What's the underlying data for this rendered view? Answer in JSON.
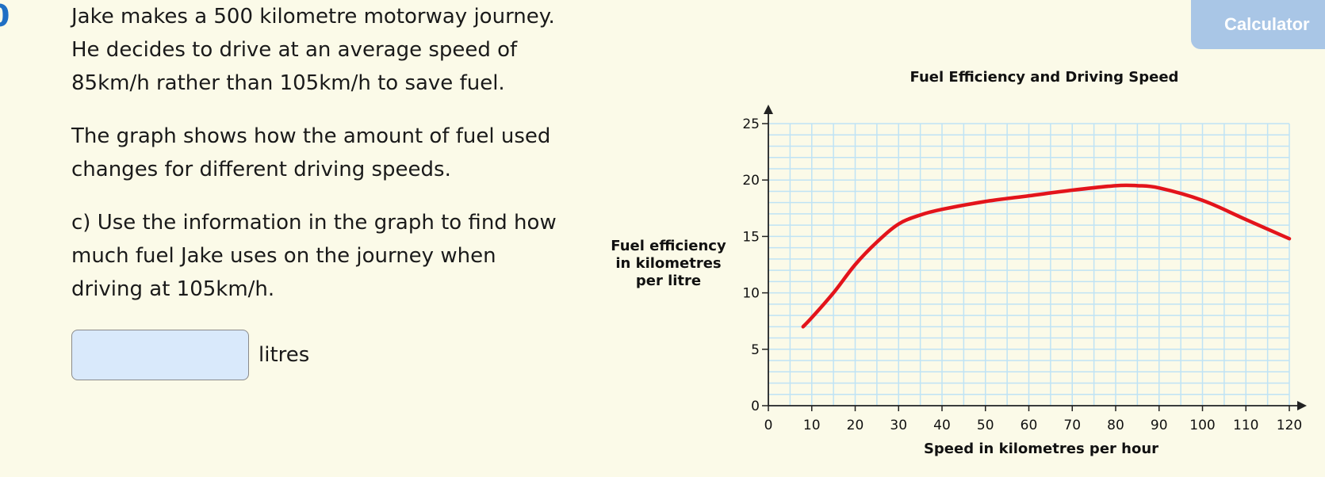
{
  "question": {
    "number": "0",
    "paragraphs": [
      [
        "Jake makes a 500 kilometre motorway journey.",
        "He decides to drive at an average speed of",
        "85km/h rather than 105km/h to save fuel."
      ],
      [
        "The graph shows how the amount of fuel used",
        "changes for different driving speeds."
      ],
      [
        "c) Use the information in the graph to find how",
        "much fuel Jake uses on the journey when",
        "driving at 105km/h."
      ]
    ]
  },
  "answer": {
    "value": "",
    "placeholder": "",
    "unit": "litres"
  },
  "toolbar": {
    "calculator_label": "Calculator"
  },
  "colors": {
    "background": "#fbfae8",
    "accent": "#1f6fc4",
    "curve": "#e3141b",
    "grid": "#bfe3f5",
    "input_bg": "#d9e9fb",
    "calculator_bg": "#a9c6e6"
  },
  "chart_data": {
    "type": "line",
    "title": "Fuel Efficiency and Driving Speed",
    "xlabel": "Speed in kilometres per hour",
    "ylabel": [
      "Fuel efficiency",
      "in kilometres",
      "per litre"
    ],
    "xlim": [
      0,
      120
    ],
    "ylim": [
      0,
      25
    ],
    "xticks": [
      0,
      10,
      20,
      30,
      40,
      50,
      60,
      70,
      80,
      90,
      100,
      110,
      120
    ],
    "yticks": [
      0,
      5,
      10,
      15,
      20,
      25
    ],
    "grid": true,
    "minor_grid_x": 5,
    "minor_grid_y": 1,
    "series": [
      {
        "x": [
          8,
          10,
          15,
          20,
          25,
          30,
          35,
          40,
          50,
          60,
          70,
          80,
          85,
          90,
          100,
          110,
          120
        ],
        "y": [
          7,
          7.8,
          10,
          12.5,
          14.5,
          16.1,
          16.9,
          17.4,
          18.1,
          18.6,
          19.1,
          19.5,
          19.5,
          19.3,
          18.2,
          16.5,
          14.8
        ]
      }
    ]
  }
}
